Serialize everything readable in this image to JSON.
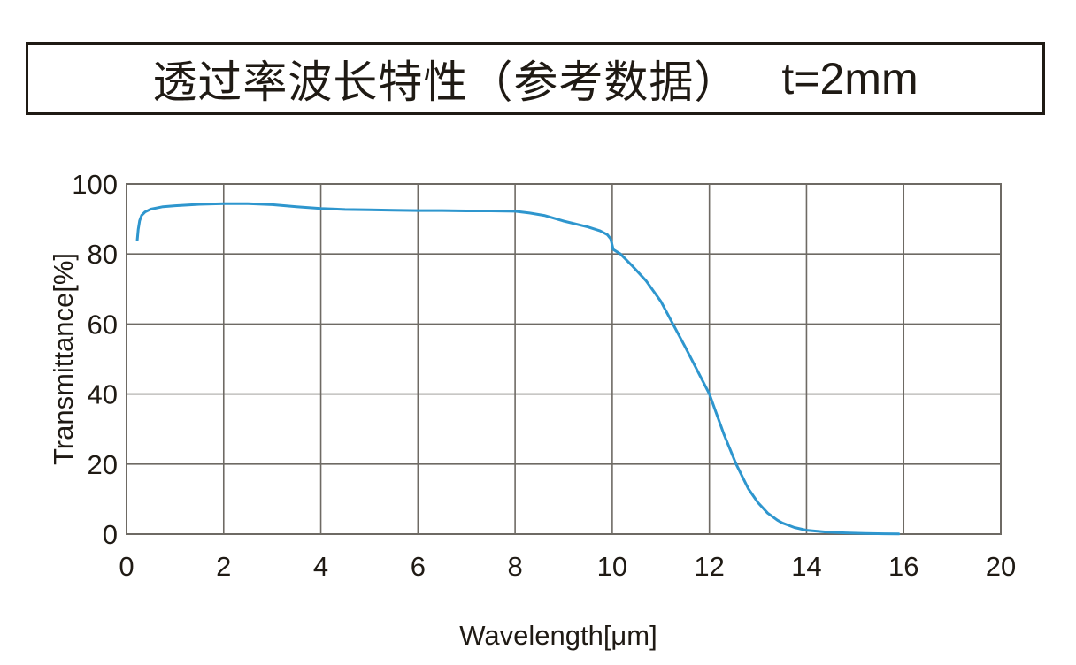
{
  "title": {
    "main": "透过率波长特性（参考数据）",
    "suffix": "t=2mm"
  },
  "chart_data": {
    "type": "line",
    "title": "透过率波长特性（参考数据） t=2mm",
    "xlabel": "Wavelength[μm]",
    "ylabel": "Transmittance[%]",
    "x_tick_labels": [
      "0",
      "2",
      "4",
      "6",
      "8",
      "10",
      "12",
      "14",
      "16",
      "20"
    ],
    "x_units_per_tick": 2,
    "y_ticks": [
      0,
      20,
      40,
      60,
      80,
      100
    ],
    "ylim": [
      0,
      100
    ],
    "grid": true,
    "legend": "none",
    "colors": {
      "curve": "#2E96CE",
      "grid": "#6e6a64",
      "border": "#6e6a64",
      "text": "#1f1a14"
    },
    "series": [
      {
        "name": "Transmittance t=2mm",
        "color": "#2E96CE",
        "points": [
          [
            0.22,
            84.0
          ],
          [
            0.24,
            87.0
          ],
          [
            0.27,
            89.5
          ],
          [
            0.31,
            91.0
          ],
          [
            0.38,
            92.0
          ],
          [
            0.5,
            92.8
          ],
          [
            0.75,
            93.5
          ],
          [
            1.0,
            93.8
          ],
          [
            1.5,
            94.2
          ],
          [
            2.0,
            94.4
          ],
          [
            2.5,
            94.4
          ],
          [
            3.0,
            94.1
          ],
          [
            3.5,
            93.5
          ],
          [
            4.0,
            93.0
          ],
          [
            4.5,
            92.7
          ],
          [
            5.0,
            92.6
          ],
          [
            5.5,
            92.5
          ],
          [
            6.0,
            92.4
          ],
          [
            6.5,
            92.4
          ],
          [
            7.0,
            92.3
          ],
          [
            7.5,
            92.3
          ],
          [
            8.0,
            92.2
          ],
          [
            8.3,
            91.7
          ],
          [
            8.6,
            91.0
          ],
          [
            9.0,
            89.4
          ],
          [
            9.5,
            87.7
          ],
          [
            9.75,
            86.6
          ],
          [
            9.9,
            85.5
          ],
          [
            9.97,
            84.3
          ],
          [
            10.02,
            81.3
          ],
          [
            10.17,
            80.0
          ],
          [
            10.4,
            76.8
          ],
          [
            10.7,
            72.3
          ],
          [
            11.0,
            66.5
          ],
          [
            11.25,
            60.0
          ],
          [
            11.5,
            53.5
          ],
          [
            11.75,
            46.8
          ],
          [
            12.0,
            40.0
          ],
          [
            12.3,
            28.5
          ],
          [
            12.55,
            20.0
          ],
          [
            12.8,
            13.0
          ],
          [
            13.0,
            9.0
          ],
          [
            13.2,
            6.0
          ],
          [
            13.4,
            4.0
          ],
          [
            13.5,
            3.2
          ],
          [
            13.75,
            1.9
          ],
          [
            14.0,
            1.1
          ],
          [
            14.4,
            0.6
          ],
          [
            14.8,
            0.35
          ],
          [
            15.2,
            0.2
          ],
          [
            15.6,
            0.1
          ],
          [
            15.9,
            0.05
          ]
        ]
      }
    ]
  }
}
